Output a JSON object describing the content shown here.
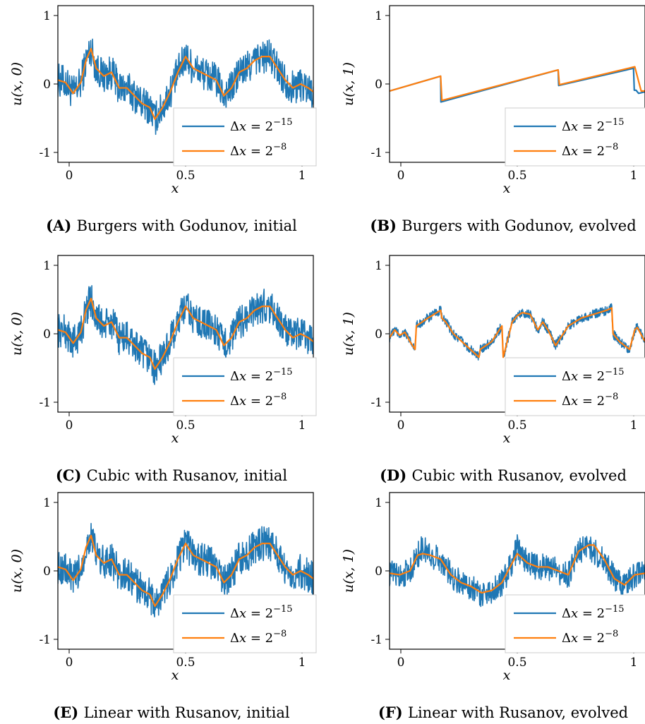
{
  "colors": {
    "fine": "#1f77b4",
    "coarse": "#ff7f0e",
    "axis": "#000000",
    "legend_border": "#cccccc"
  },
  "panels": [
    {
      "letter": "(A)",
      "caption": "Burgers with Godunov, initial"
    },
    {
      "letter": "(B)",
      "caption": "Burgers with Godunov, evolved"
    },
    {
      "letter": "(C)",
      "caption": "Cubic with Rusanov, initial"
    },
    {
      "letter": "(D)",
      "caption": "Cubic with Rusanov, evolved"
    },
    {
      "letter": "(E)",
      "caption": "Linear with Rusanov, initial"
    },
    {
      "letter": "(F)",
      "caption": "Linear with Rusanov, evolved"
    }
  ],
  "chart_data": [
    {
      "type": "line",
      "panel": "A",
      "xlabel": "x",
      "ylabel": "u(x, 0)",
      "xlim": [
        0,
        1
      ],
      "ylim": [
        -1,
        1
      ],
      "xticks": [
        "0",
        "0.5",
        "1"
      ],
      "yticks": [
        "-1",
        "0",
        "1"
      ],
      "legend_position": "bottom-right",
      "series": [
        {
          "name": "Δx = 2^-15",
          "kind": "noisy",
          "color": "#1f77b4",
          "x": [
            0,
            0.03,
            0.06,
            0.09,
            0.11,
            0.13,
            0.15,
            0.18,
            0.21,
            0.24,
            0.27,
            0.3,
            0.33,
            0.36,
            0.38,
            0.41,
            0.44,
            0.47,
            0.5,
            0.53,
            0.56,
            0.59,
            0.62,
            0.65,
            0.68,
            0.71,
            0.74,
            0.77,
            0.8,
            0.83,
            0.86,
            0.89,
            0.92,
            0.95,
            0.98,
            1.0
          ],
          "y": [
            0.05,
            0.02,
            -0.12,
            0.02,
            0.3,
            0.45,
            0.2,
            0.1,
            0.15,
            -0.05,
            -0.05,
            -0.15,
            -0.25,
            -0.3,
            -0.45,
            -0.3,
            -0.1,
            0.15,
            0.35,
            0.2,
            0.15,
            0.1,
            0.05,
            -0.15,
            -0.05,
            0.15,
            0.2,
            0.3,
            0.35,
            0.35,
            0.2,
            0.05,
            -0.05,
            0.0,
            -0.05,
            -0.1
          ],
          "noise_amplitude": 0.22
        },
        {
          "name": "Δx = 2^-8",
          "kind": "smooth",
          "color": "#ff7f0e",
          "x": [
            0,
            0.03,
            0.06,
            0.09,
            0.11,
            0.13,
            0.15,
            0.18,
            0.21,
            0.24,
            0.27,
            0.3,
            0.33,
            0.36,
            0.38,
            0.41,
            0.44,
            0.47,
            0.5,
            0.53,
            0.56,
            0.59,
            0.62,
            0.65,
            0.68,
            0.71,
            0.74,
            0.77,
            0.8,
            0.83,
            0.86,
            0.89,
            0.92,
            0.95,
            0.98,
            1.0
          ],
          "y": [
            0.05,
            0.02,
            -0.12,
            0.02,
            0.3,
            0.45,
            0.2,
            0.1,
            0.15,
            -0.05,
            -0.05,
            -0.15,
            -0.25,
            -0.3,
            -0.45,
            -0.3,
            -0.1,
            0.15,
            0.35,
            0.2,
            0.15,
            0.1,
            0.05,
            -0.15,
            -0.05,
            0.15,
            0.2,
            0.3,
            0.35,
            0.35,
            0.2,
            0.05,
            -0.05,
            0.0,
            -0.05,
            -0.1
          ]
        }
      ]
    },
    {
      "type": "line",
      "panel": "B",
      "xlabel": "x",
      "ylabel": "u(x, 1)",
      "xlim": [
        0,
        1
      ],
      "ylim": [
        -1,
        1
      ],
      "xticks": [
        "0",
        "0.5",
        "1"
      ],
      "yticks": [
        "-1",
        "0",
        "1"
      ],
      "legend_position": "bottom-right",
      "series": [
        {
          "name": "Δx = 2^-15",
          "kind": "exact",
          "color": "#1f77b4",
          "x": [
            0,
            0.2,
            0.201,
            0.66,
            0.662,
            0.955,
            0.958,
            0.965,
            0.975,
            1.0
          ],
          "y": [
            -0.09,
            0.1,
            -0.23,
            0.18,
            -0.02,
            0.2,
            -0.08,
            -0.08,
            -0.12,
            -0.1
          ]
        },
        {
          "name": "Δx = 2^-8",
          "kind": "exact",
          "color": "#ff7f0e",
          "x": [
            0,
            0.2,
            0.205,
            0.66,
            0.665,
            0.96,
            0.985,
            1.0
          ],
          "y": [
            -0.09,
            0.1,
            -0.21,
            0.18,
            -0.01,
            0.22,
            -0.09,
            -0.09
          ]
        }
      ]
    },
    {
      "type": "line",
      "panel": "C",
      "xlabel": "x",
      "ylabel": "u(x, 0)",
      "xlim": [
        0,
        1
      ],
      "ylim": [
        -1,
        1
      ],
      "xticks": [
        "0",
        "0.5",
        "1"
      ],
      "yticks": [
        "-1",
        "0",
        "1"
      ],
      "legend_position": "bottom-right",
      "series": [
        {
          "name": "Δx = 2^-15",
          "kind": "noisy",
          "color": "#1f77b4",
          "x": [
            0,
            0.03,
            0.06,
            0.09,
            0.11,
            0.13,
            0.15,
            0.18,
            0.21,
            0.24,
            0.27,
            0.3,
            0.33,
            0.36,
            0.38,
            0.41,
            0.44,
            0.47,
            0.5,
            0.53,
            0.56,
            0.59,
            0.62,
            0.65,
            0.68,
            0.71,
            0.74,
            0.77,
            0.8,
            0.83,
            0.86,
            0.89,
            0.92,
            0.95,
            0.98,
            1.0
          ],
          "y": [
            0.05,
            0.02,
            -0.12,
            0.02,
            0.3,
            0.45,
            0.2,
            0.1,
            0.15,
            -0.05,
            -0.05,
            -0.15,
            -0.25,
            -0.3,
            -0.45,
            -0.3,
            -0.1,
            0.15,
            0.35,
            0.2,
            0.15,
            0.1,
            0.05,
            -0.15,
            -0.05,
            0.15,
            0.2,
            0.3,
            0.35,
            0.35,
            0.2,
            0.05,
            -0.05,
            0.0,
            -0.05,
            -0.1
          ],
          "noise_amplitude": 0.22
        },
        {
          "name": "Δx = 2^-8",
          "kind": "smooth",
          "color": "#ff7f0e",
          "x": [
            0,
            0.03,
            0.06,
            0.09,
            0.11,
            0.13,
            0.15,
            0.18,
            0.21,
            0.24,
            0.27,
            0.3,
            0.33,
            0.36,
            0.38,
            0.41,
            0.44,
            0.47,
            0.5,
            0.53,
            0.56,
            0.59,
            0.62,
            0.65,
            0.68,
            0.71,
            0.74,
            0.77,
            0.8,
            0.83,
            0.86,
            0.89,
            0.92,
            0.95,
            0.98,
            1.0
          ],
          "y": [
            0.05,
            0.02,
            -0.12,
            0.02,
            0.3,
            0.45,
            0.2,
            0.1,
            0.15,
            -0.05,
            -0.05,
            -0.15,
            -0.25,
            -0.3,
            -0.45,
            -0.3,
            -0.1,
            0.15,
            0.35,
            0.2,
            0.15,
            0.1,
            0.05,
            -0.15,
            -0.05,
            0.15,
            0.2,
            0.3,
            0.35,
            0.35,
            0.2,
            0.05,
            -0.05,
            0.0,
            -0.05,
            -0.1
          ]
        }
      ]
    },
    {
      "type": "line",
      "panel": "D",
      "xlabel": "x",
      "ylabel": "u(x, 1)",
      "xlim": [
        0,
        1
      ],
      "ylim": [
        -1,
        1
      ],
      "xticks": [
        "0",
        "0.5",
        "1"
      ],
      "yticks": [
        "-1",
        "0",
        "1"
      ],
      "legend_position": "bottom-right",
      "series": [
        {
          "name": "Δx = 2^-15",
          "kind": "noisy",
          "color": "#1f77b4",
          "x": [
            0,
            0.02,
            0.04,
            0.06,
            0.08,
            0.1,
            0.105,
            0.15,
            0.2,
            0.205,
            0.22,
            0.25,
            0.3,
            0.35,
            0.355,
            0.4,
            0.44,
            0.445,
            0.48,
            0.5,
            0.52,
            0.55,
            0.58,
            0.6,
            0.62,
            0.65,
            0.7,
            0.75,
            0.8,
            0.85,
            0.87,
            0.875,
            0.9,
            0.94,
            0.96,
            0.97,
            1.0
          ],
          "y": [
            -0.05,
            0.05,
            -0.02,
            0.02,
            -0.1,
            -0.2,
            0.1,
            0.2,
            0.3,
            0.2,
            0.15,
            0.0,
            -0.15,
            -0.3,
            -0.2,
            -0.1,
            0.1,
            -0.3,
            0.15,
            0.23,
            0.27,
            0.25,
            0.05,
            0.15,
            0.05,
            -0.15,
            0.1,
            0.2,
            0.25,
            0.3,
            0.33,
            0.0,
            -0.1,
            -0.2,
            0.05,
            0.08,
            -0.1
          ],
          "noise_amplitude": 0.06
        },
        {
          "name": "Δx = 2^-8",
          "kind": "smooth",
          "color": "#ff7f0e",
          "x": [
            0,
            0.02,
            0.04,
            0.06,
            0.08,
            0.1,
            0.105,
            0.15,
            0.2,
            0.205,
            0.22,
            0.25,
            0.3,
            0.35,
            0.355,
            0.4,
            0.44,
            0.445,
            0.48,
            0.5,
            0.52,
            0.55,
            0.58,
            0.6,
            0.62,
            0.65,
            0.7,
            0.75,
            0.8,
            0.85,
            0.87,
            0.875,
            0.9,
            0.94,
            0.96,
            0.97,
            1.0
          ],
          "y": [
            -0.05,
            0.05,
            -0.02,
            0.02,
            -0.1,
            -0.2,
            0.1,
            0.2,
            0.3,
            0.2,
            0.15,
            0.0,
            -0.15,
            -0.3,
            -0.2,
            -0.1,
            0.1,
            -0.3,
            0.15,
            0.23,
            0.27,
            0.25,
            0.05,
            0.15,
            0.05,
            -0.15,
            0.1,
            0.2,
            0.25,
            0.3,
            0.33,
            0.0,
            -0.1,
            -0.2,
            0.05,
            0.08,
            -0.1
          ]
        }
      ]
    },
    {
      "type": "line",
      "panel": "E",
      "xlabel": "x",
      "ylabel": "u(x, 0)",
      "xlim": [
        0,
        1
      ],
      "ylim": [
        -1,
        1
      ],
      "xticks": [
        "0",
        "0.5",
        "1"
      ],
      "yticks": [
        "-1",
        "0",
        "1"
      ],
      "legend_position": "bottom-right",
      "series": [
        {
          "name": "Δx = 2^-15",
          "kind": "noisy",
          "color": "#1f77b4",
          "x": [
            0,
            0.03,
            0.06,
            0.09,
            0.11,
            0.13,
            0.15,
            0.18,
            0.21,
            0.24,
            0.27,
            0.3,
            0.33,
            0.36,
            0.38,
            0.41,
            0.44,
            0.47,
            0.5,
            0.53,
            0.56,
            0.59,
            0.62,
            0.65,
            0.68,
            0.71,
            0.74,
            0.77,
            0.8,
            0.83,
            0.86,
            0.89,
            0.92,
            0.95,
            0.98,
            1.0
          ],
          "y": [
            0.05,
            0.02,
            -0.12,
            0.02,
            0.3,
            0.45,
            0.2,
            0.1,
            0.15,
            -0.05,
            -0.05,
            -0.15,
            -0.25,
            -0.3,
            -0.45,
            -0.3,
            -0.1,
            0.15,
            0.35,
            0.2,
            0.15,
            0.1,
            0.05,
            -0.15,
            -0.05,
            0.15,
            0.2,
            0.3,
            0.35,
            0.35,
            0.2,
            0.05,
            -0.05,
            0.0,
            -0.05,
            -0.1
          ],
          "noise_amplitude": 0.22
        },
        {
          "name": "Δx = 2^-8",
          "kind": "smooth",
          "color": "#ff7f0e",
          "x": [
            0,
            0.03,
            0.06,
            0.09,
            0.11,
            0.13,
            0.15,
            0.18,
            0.21,
            0.24,
            0.27,
            0.3,
            0.33,
            0.36,
            0.38,
            0.41,
            0.44,
            0.47,
            0.5,
            0.53,
            0.56,
            0.59,
            0.62,
            0.65,
            0.68,
            0.71,
            0.74,
            0.77,
            0.8,
            0.83,
            0.86,
            0.89,
            0.92,
            0.95,
            0.98,
            1.0
          ],
          "y": [
            0.05,
            0.02,
            -0.12,
            0.02,
            0.3,
            0.45,
            0.2,
            0.1,
            0.15,
            -0.05,
            -0.05,
            -0.15,
            -0.25,
            -0.3,
            -0.45,
            -0.3,
            -0.1,
            0.15,
            0.35,
            0.2,
            0.15,
            0.1,
            0.05,
            -0.15,
            -0.05,
            0.15,
            0.2,
            0.3,
            0.35,
            0.35,
            0.2,
            0.05,
            -0.05,
            0.0,
            -0.05,
            -0.1
          ]
        }
      ]
    },
    {
      "type": "line",
      "panel": "F",
      "xlabel": "x",
      "ylabel": "u(x, 1)",
      "xlim": [
        0,
        1
      ],
      "ylim": [
        -1,
        1
      ],
      "xticks": [
        "0",
        "0.5",
        "1"
      ],
      "yticks": [
        "-1",
        "0",
        "1"
      ],
      "legend_position": "bottom-right",
      "series": [
        {
          "name": "Δx = 2^-15",
          "kind": "noisy",
          "color": "#1f77b4",
          "x": [
            0,
            0.04,
            0.08,
            0.11,
            0.13,
            0.16,
            0.2,
            0.24,
            0.28,
            0.32,
            0.36,
            0.4,
            0.44,
            0.48,
            0.5,
            0.54,
            0.58,
            0.62,
            0.66,
            0.7,
            0.74,
            0.78,
            0.8,
            0.84,
            0.88,
            0.92,
            0.96,
            1.0
          ],
          "y": [
            -0.03,
            -0.05,
            0.0,
            0.2,
            0.3,
            0.2,
            0.15,
            -0.05,
            -0.15,
            -0.2,
            -0.3,
            -0.25,
            -0.15,
            0.1,
            0.3,
            0.1,
            0.05,
            0.05,
            0.0,
            -0.05,
            0.25,
            0.3,
            0.25,
            0.15,
            -0.1,
            -0.2,
            -0.05,
            -0.03
          ],
          "noise_amplitude": 0.17
        },
        {
          "name": "Δx = 2^-8",
          "kind": "smooth",
          "color": "#ff7f0e",
          "x": [
            0,
            0.04,
            0.08,
            0.11,
            0.13,
            0.16,
            0.2,
            0.24,
            0.28,
            0.32,
            0.36,
            0.4,
            0.44,
            0.48,
            0.5,
            0.54,
            0.58,
            0.62,
            0.66,
            0.7,
            0.74,
            0.78,
            0.8,
            0.84,
            0.88,
            0.92,
            0.96,
            1.0
          ],
          "y": [
            -0.03,
            -0.05,
            0.0,
            0.2,
            0.22,
            0.2,
            0.15,
            -0.05,
            -0.15,
            -0.2,
            -0.28,
            -0.25,
            -0.15,
            0.1,
            0.22,
            0.1,
            0.05,
            0.05,
            0.0,
            -0.05,
            0.25,
            0.33,
            0.33,
            0.15,
            -0.1,
            -0.18,
            -0.05,
            -0.03
          ]
        }
      ]
    }
  ]
}
